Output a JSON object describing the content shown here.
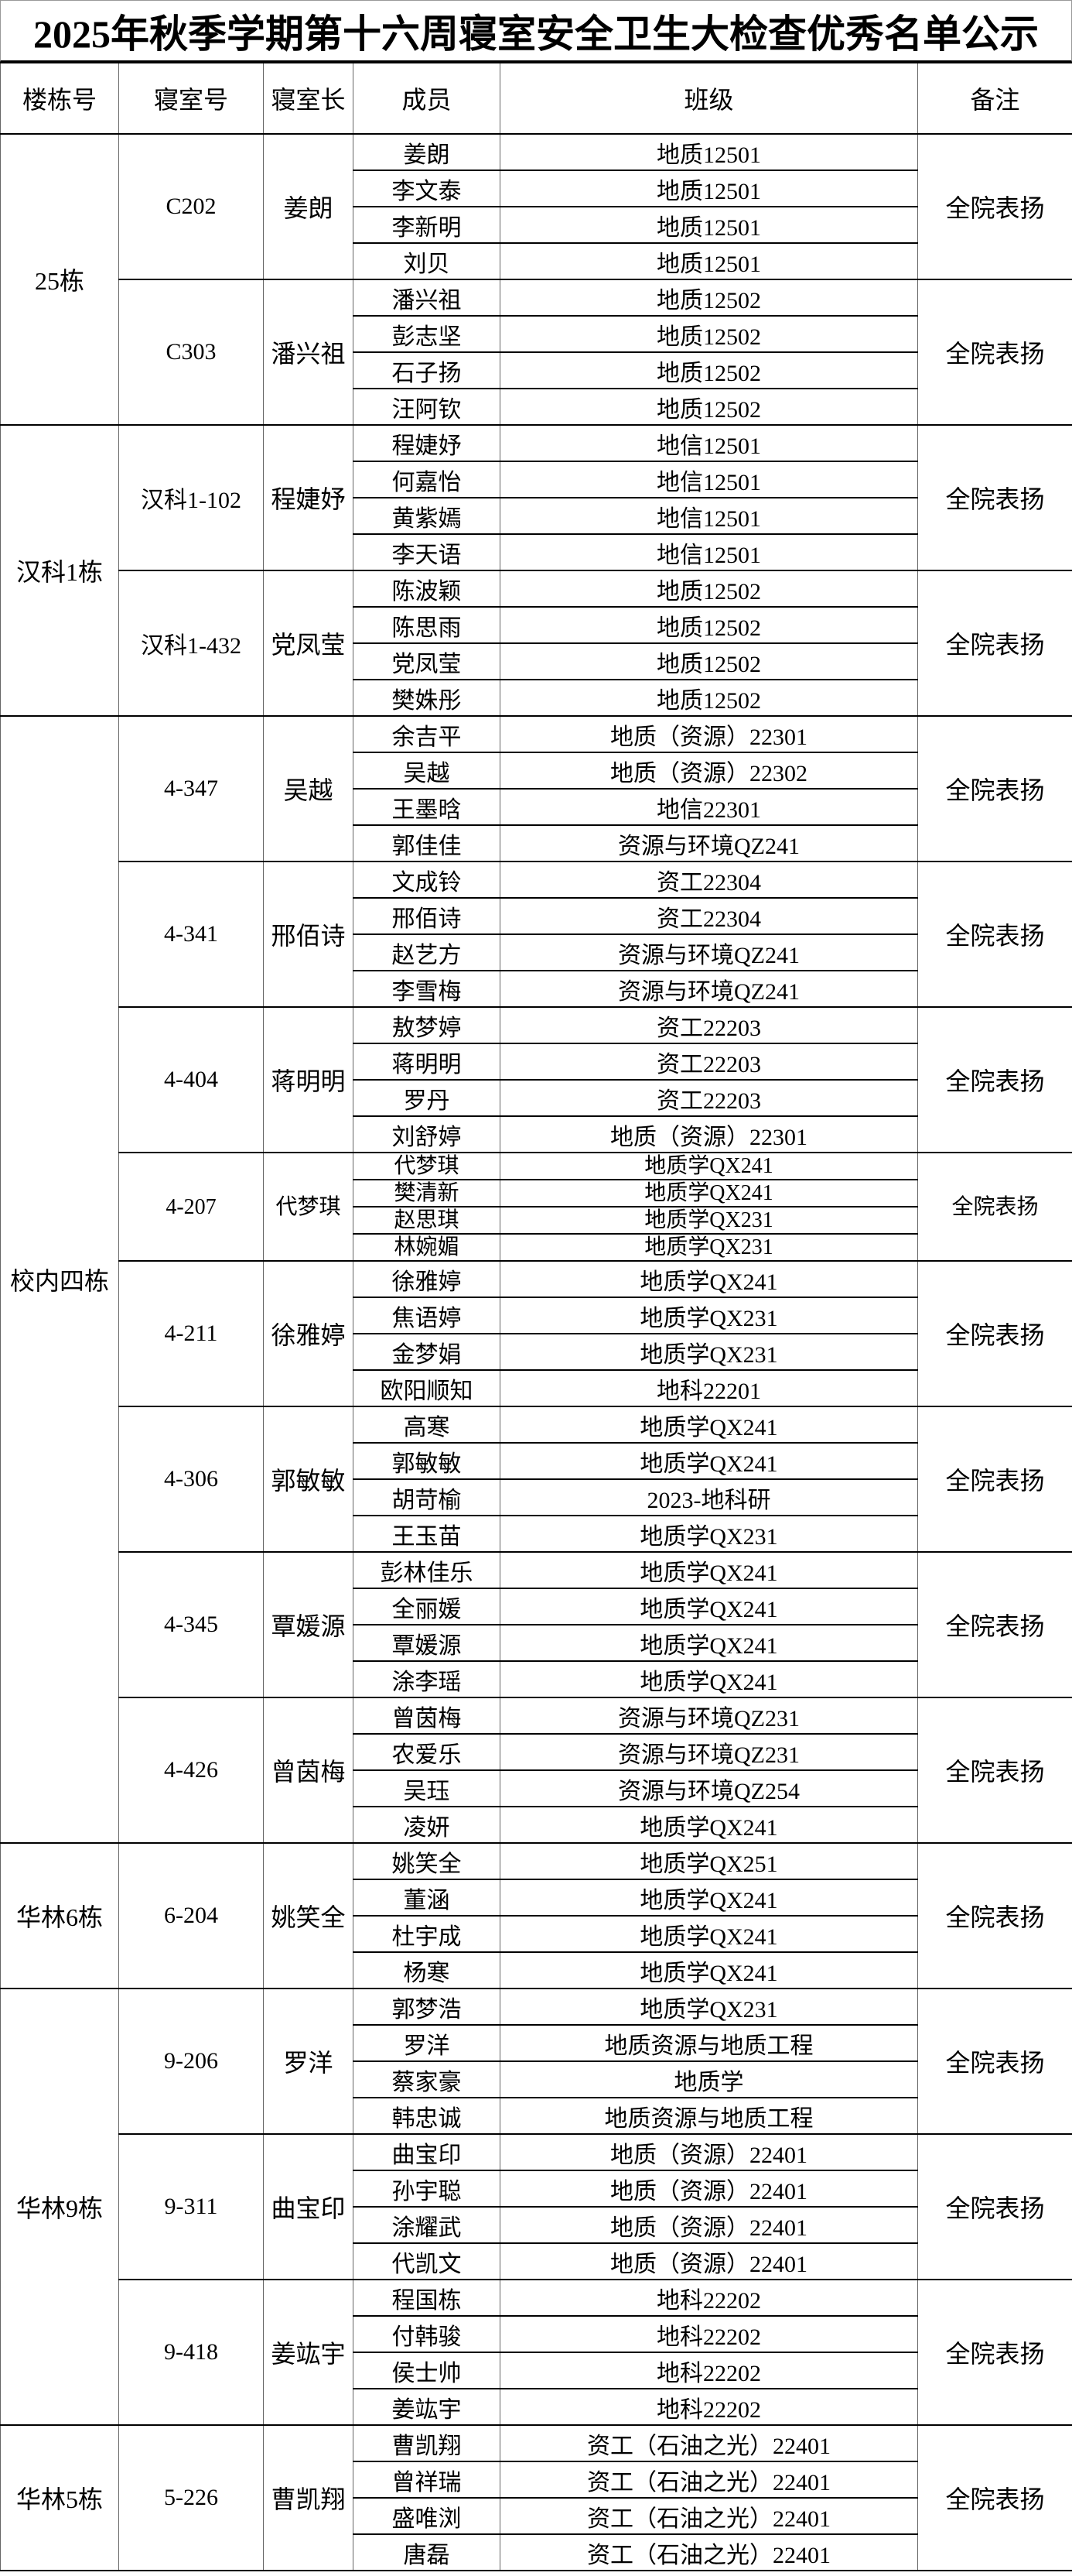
{
  "title": "2025年秋季学期第十六周寝室安全卫生大检查优秀名单公示",
  "headers": [
    "楼栋号",
    "寝室号",
    "寝室长",
    "成员",
    "班级",
    "备注"
  ],
  "buildings": [
    {
      "name": "25栋",
      "rooms": [
        {
          "room": "C202",
          "leader": "姜朗",
          "note": "全院表扬",
          "members": [
            {
              "name": "姜朗",
              "class": "地质12501"
            },
            {
              "name": "李文泰",
              "class": "地质12501"
            },
            {
              "name": "李新明",
              "class": "地质12501"
            },
            {
              "name": "刘贝",
              "class": "地质12501"
            }
          ]
        },
        {
          "room": "C303",
          "leader": "潘兴祖",
          "note": "全院表扬",
          "members": [
            {
              "name": "潘兴祖",
              "class": "地质12502"
            },
            {
              "name": "彭志坚",
              "class": "地质12502"
            },
            {
              "name": "石子扬",
              "class": "地质12502"
            },
            {
              "name": "汪阿钦",
              "class": "地质12502"
            }
          ]
        }
      ]
    },
    {
      "name": "汉科1栋",
      "rooms": [
        {
          "room": "汉科1-102",
          "leader": "程婕妤",
          "note": "全院表扬",
          "members": [
            {
              "name": "程婕妤",
              "class": "地信12501"
            },
            {
              "name": "何嘉怡",
              "class": "地信12501"
            },
            {
              "name": "黄紫嫣",
              "class": "地信12501"
            },
            {
              "name": "李天语",
              "class": "地信12501"
            }
          ]
        },
        {
          "room": "汉科1-432",
          "leader": "党凤莹",
          "note": "全院表扬",
          "members": [
            {
              "name": "陈波颖",
              "class": "地质12502"
            },
            {
              "name": "陈思雨",
              "class": "地质12502"
            },
            {
              "name": "党凤莹",
              "class": "地质12502"
            },
            {
              "name": "樊姝彤",
              "class": "地质12502"
            }
          ]
        }
      ]
    },
    {
      "name": "校内四栋",
      "rooms": [
        {
          "room": "4-347",
          "leader": "吴越",
          "note": "全院表扬",
          "members": [
            {
              "name": "余吉平",
              "class": "地质（资源）22301"
            },
            {
              "name": "吴越",
              "class": "地质（资源）22302"
            },
            {
              "name": "王墨晗",
              "class": "地信22301"
            },
            {
              "name": "郭佳佳",
              "class": "资源与环境QZ241"
            }
          ]
        },
        {
          "room": "4-341",
          "leader": "邢佰诗",
          "note": "全院表扬",
          "members": [
            {
              "name": "文成铃",
              "class": "资工22304"
            },
            {
              "name": "邢佰诗",
              "class": "资工22304"
            },
            {
              "name": "赵艺方",
              "class": "资源与环境QZ241"
            },
            {
              "name": "李雪梅",
              "class": "资源与环境QZ241"
            }
          ]
        },
        {
          "room": "4-404",
          "leader": "蒋明明",
          "note": "全院表扬",
          "members": [
            {
              "name": "敖梦婷",
              "class": "资工22203"
            },
            {
              "name": "蒋明明",
              "class": "资工22203"
            },
            {
              "name": "罗丹",
              "class": "资工22203"
            },
            {
              "name": "刘舒婷",
              "class": "地质（资源）22301"
            }
          ]
        },
        {
          "room": "4-207",
          "leader": "代梦琪",
          "note": "全院表扬",
          "compact": true,
          "members": [
            {
              "name": "代梦琪",
              "class": "地质学QX241"
            },
            {
              "name": "樊清新",
              "class": "地质学QX241"
            },
            {
              "name": "赵思琪",
              "class": "地质学QX231"
            },
            {
              "name": "林婉媚",
              "class": "地质学QX231"
            }
          ]
        },
        {
          "room": "4-211",
          "leader": "徐雅婷",
          "note": "全院表扬",
          "members": [
            {
              "name": "徐雅婷",
              "class": "地质学QX241"
            },
            {
              "name": "焦语婷",
              "class": "地质学QX231"
            },
            {
              "name": "金梦娟",
              "class": "地质学QX231"
            },
            {
              "name": "欧阳顺知",
              "class": "地科22201"
            }
          ]
        },
        {
          "room": "4-306",
          "leader": "郭敏敏",
          "note": "全院表扬",
          "members": [
            {
              "name": "高寒",
              "class": "地质学QX241"
            },
            {
              "name": "郭敏敏",
              "class": "地质学QX241"
            },
            {
              "name": "胡苛榆",
              "class": "2023-地科研"
            },
            {
              "name": "王玉苗",
              "class": "地质学QX231"
            }
          ]
        },
        {
          "room": "4-345",
          "leader": "覃媛源",
          "note": "全院表扬",
          "members": [
            {
              "name": "彭林佳乐",
              "class": "地质学QX241"
            },
            {
              "name": "全丽媛",
              "class": "地质学QX241"
            },
            {
              "name": "覃媛源",
              "class": "地质学QX241"
            },
            {
              "name": "涂李瑶",
              "class": "地质学QX241"
            }
          ]
        },
        {
          "room": "4-426",
          "leader": "曾茵梅",
          "note": "全院表扬",
          "members": [
            {
              "name": "曾茵梅",
              "class": "资源与环境QZ231"
            },
            {
              "name": "农爱乐",
              "class": "资源与环境QZ231"
            },
            {
              "name": "吴珏",
              "class": "资源与环境QZ254"
            },
            {
              "name": "凌妍",
              "class": "地质学QX241"
            }
          ]
        }
      ]
    },
    {
      "name": "华林6栋",
      "rooms": [
        {
          "room": "6-204",
          "leader": "姚笑全",
          "note": "全院表扬",
          "members": [
            {
              "name": "姚笑全",
              "class": "地质学QX251"
            },
            {
              "name": "董涵",
              "class": "地质学QX241"
            },
            {
              "name": "杜宇成",
              "class": "地质学QX241"
            },
            {
              "name": "杨寒",
              "class": "地质学QX241"
            }
          ]
        }
      ]
    },
    {
      "name": "华林9栋",
      "rooms": [
        {
          "room": "9-206",
          "leader": "罗洋",
          "note": "全院表扬",
          "members": [
            {
              "name": "郭梦浩",
              "class": "地质学QX231"
            },
            {
              "name": "罗洋",
              "class": "地质资源与地质工程"
            },
            {
              "name": "蔡家豪",
              "class": "地质学"
            },
            {
              "name": "韩忠诚",
              "class": "地质资源与地质工程"
            }
          ]
        },
        {
          "room": "9-311",
          "leader": "曲宝印",
          "note": "全院表扬",
          "members": [
            {
              "name": "曲宝印",
              "class": "地质（资源）22401"
            },
            {
              "name": "孙宇聪",
              "class": "地质（资源）22401"
            },
            {
              "name": "涂耀武",
              "class": "地质（资源）22401"
            },
            {
              "name": "代凯文",
              "class": "地质（资源）22401"
            }
          ]
        },
        {
          "room": "9-418",
          "leader": "姜竑宇",
          "note": "全院表扬",
          "members": [
            {
              "name": "程国栋",
              "class": "地科22202"
            },
            {
              "name": "付韩骏",
              "class": "地科22202"
            },
            {
              "name": "侯士帅",
              "class": "地科22202"
            },
            {
              "name": "姜竑宇",
              "class": "地科22202"
            }
          ]
        }
      ]
    },
    {
      "name": "华林5栋",
      "rooms": [
        {
          "room": "5-226",
          "leader": "曹凯翔",
          "note": "全院表扬",
          "members": [
            {
              "name": "曹凯翔",
              "class": "资工（石油之光）22401"
            },
            {
              "name": "曾祥瑞",
              "class": "资工（石油之光）22401"
            },
            {
              "name": "盛唯浏",
              "class": "资工（石油之光）22401"
            },
            {
              "name": "唐磊",
              "class": "资工（石油之光）22401"
            }
          ]
        }
      ]
    }
  ]
}
